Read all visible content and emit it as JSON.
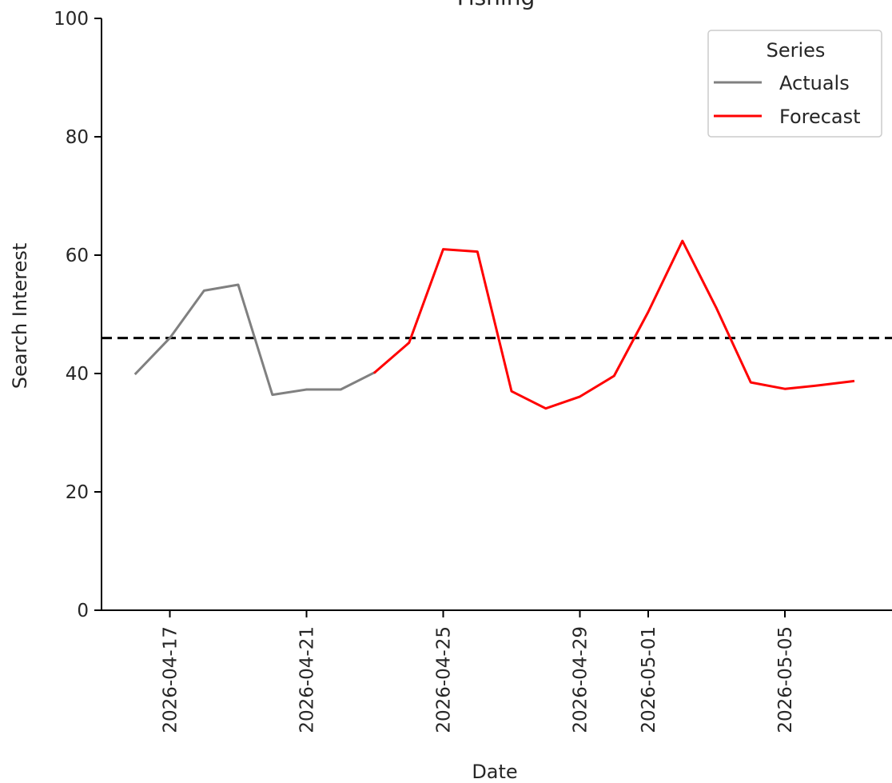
{
  "chart_data": {
    "type": "line",
    "title": "Fishing",
    "xlabel": "Date",
    "ylabel": "Search Interest",
    "ylim": [
      0,
      100
    ],
    "xlim": [
      "2026-04-15",
      "2026-05-08"
    ],
    "yticks": [
      0,
      20,
      40,
      60,
      80,
      100
    ],
    "xticks": [
      "2026-04-17",
      "2026-04-21",
      "2026-04-25",
      "2026-04-29",
      "2026-05-01",
      "2026-05-05"
    ],
    "grid": false,
    "legend": {
      "title": "Series",
      "position": "top-right"
    },
    "reference_line": {
      "y": 46,
      "style": "dashed",
      "color": "#000000"
    },
    "series": [
      {
        "name": "Actuals",
        "color": "#808080",
        "points": [
          {
            "x": "2026-04-16",
            "y": 40
          },
          {
            "x": "2026-04-17",
            "y": 46
          },
          {
            "x": "2026-04-18",
            "y": 54
          },
          {
            "x": "2026-04-19",
            "y": 55
          },
          {
            "x": "2026-04-20",
            "y": 36.4
          },
          {
            "x": "2026-04-21",
            "y": 37.3
          },
          {
            "x": "2026-04-22",
            "y": 37.3
          },
          {
            "x": "2026-04-23",
            "y": 40.2
          }
        ]
      },
      {
        "name": "Forecast",
        "color": "#ff0000",
        "points": [
          {
            "x": "2026-04-23",
            "y": 40.2
          },
          {
            "x": "2026-04-24",
            "y": 45.2
          },
          {
            "x": "2026-04-25",
            "y": 61
          },
          {
            "x": "2026-04-26",
            "y": 60.6
          },
          {
            "x": "2026-04-27",
            "y": 37
          },
          {
            "x": "2026-04-28",
            "y": 34.1
          },
          {
            "x": "2026-04-29",
            "y": 36.1
          },
          {
            "x": "2026-04-30",
            "y": 39.6
          },
          {
            "x": "2026-05-01",
            "y": 50.4
          },
          {
            "x": "2026-05-02",
            "y": 62.4
          },
          {
            "x": "2026-05-03",
            "y": 51
          },
          {
            "x": "2026-05-04",
            "y": 38.5
          },
          {
            "x": "2026-05-05",
            "y": 37.4
          },
          {
            "x": "2026-05-06",
            "y": 38
          },
          {
            "x": "2026-05-07",
            "y": 38.7
          }
        ]
      }
    ]
  }
}
